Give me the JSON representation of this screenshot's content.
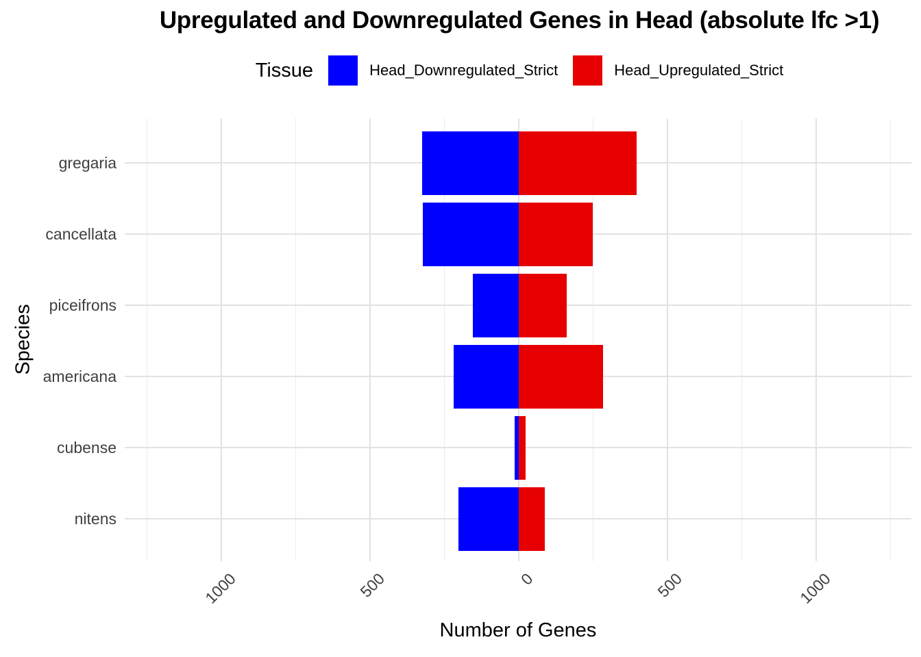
{
  "chart_data": {
    "type": "bar",
    "orientation": "horizontal-diverging",
    "title": "Upregulated and Downregulated Genes in Head (absolute lfc >1)",
    "xlabel": "Number of Genes",
    "ylabel": "Species",
    "legend_title": "Tissue",
    "legend_position": "top",
    "grid": true,
    "categories": [
      "gregaria",
      "cancellata",
      "piceifrons",
      "americana",
      "cubense",
      "nitens"
    ],
    "series": [
      {
        "name": "Head_Downregulated_Strict",
        "color": "#0000ff",
        "direction": "negative",
        "values": [
          324,
          322,
          155,
          220,
          15,
          203
        ]
      },
      {
        "name": "Head_Upregulated_Strict",
        "color": "#e60000",
        "direction": "positive",
        "values": [
          397,
          249,
          162,
          283,
          22,
          88
        ]
      }
    ],
    "x_ticks": [
      -1000,
      -500,
      0,
      500,
      1000
    ],
    "x_tick_labels": [
      "1000",
      "500",
      "0",
      "500",
      "1000"
    ],
    "xlim": [
      -1325,
      1320
    ],
    "minor_grid_step": 250,
    "background_color": "#ffffff",
    "gridline_color": "#e2e2e2",
    "tick_label_color": "#404040"
  }
}
